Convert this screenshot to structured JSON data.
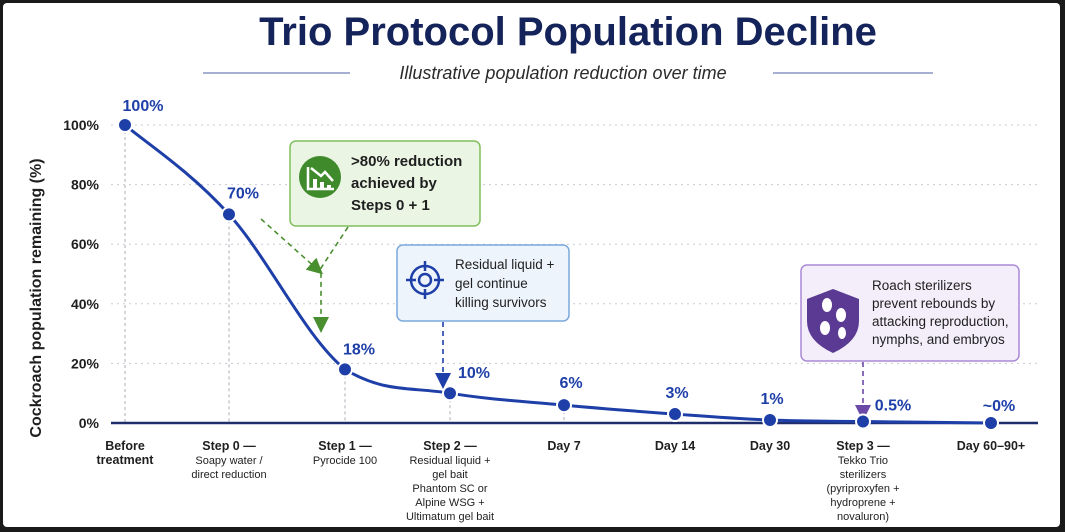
{
  "chart_data": {
    "type": "line",
    "title": "Trio Protocol Population Decline",
    "subtitle": "Illustrative population reduction over time",
    "ylabel": "Cockroach population remaining (%)",
    "xlabel": "",
    "ylim": [
      0,
      100
    ],
    "yticks": [
      "0%",
      "20%",
      "40%",
      "60%",
      "80%",
      "100%"
    ],
    "grid": true,
    "categories": [
      [
        "Before",
        "treatment"
      ],
      [
        "Step 0 —",
        "Soapy water /",
        "direct reduction"
      ],
      [
        "Step 1 —",
        "Pyrocide 100"
      ],
      [
        "Step 2 —",
        "Residual liquid +",
        "gel bait",
        "Phantom SC or",
        "Alpine WSG +",
        "Ultimatum gel bait"
      ],
      [
        "Day 7"
      ],
      [
        "Day 14"
      ],
      [
        "Day 30"
      ],
      [
        "Step 3 —",
        "Tekko Trio",
        "sterilizers",
        "(pyriproxyfen +",
        "hydroprene +",
        "novaluron)"
      ],
      [
        "Day 60–90+"
      ]
    ],
    "values": [
      100,
      70,
      18,
      10,
      6,
      3,
      1,
      0.5,
      0
    ],
    "data_labels": [
      "100%",
      "70%",
      "18%",
      "10%",
      "6%",
      "3%",
      "1%",
      "0.5%",
      "~0%"
    ],
    "line_color": "#1e3fa8",
    "annotations": [
      {
        "text": [
          ">80% reduction",
          "achieved by",
          "Steps 0 + 1"
        ],
        "color": "#5aa33a",
        "icon": "chart-decline-icon"
      },
      {
        "text": [
          "Residual liquid +",
          "gel continue",
          "killing survivors"
        ],
        "color": "#4a86d0",
        "icon": "crosshair-icon"
      },
      {
        "text": [
          "Roach sterilizers",
          "prevent rebounds by",
          "attacking reproduction,",
          "nymphs, and embryos"
        ],
        "color": "#8a6bc0",
        "icon": "shield-roach-icon"
      }
    ]
  }
}
